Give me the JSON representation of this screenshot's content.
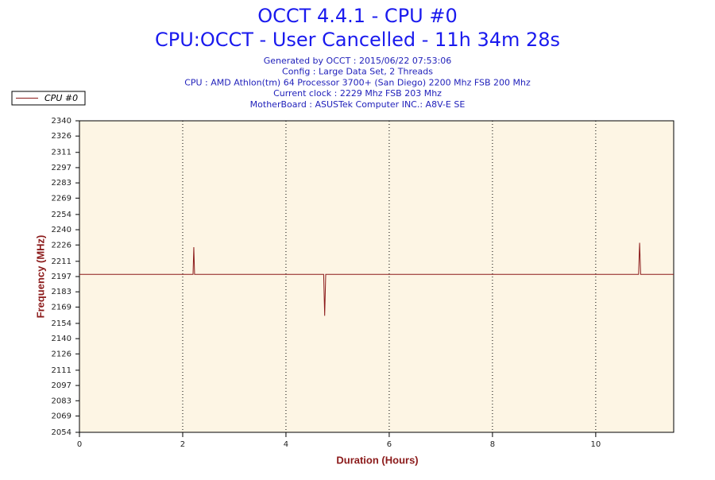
{
  "chart_data": {
    "type": "line",
    "title": "OCCT 4.4.1 - CPU #0",
    "subtitle": "CPU:OCCT - User Cancelled - 11h 34m 28s",
    "info": [
      "Generated by OCCT : 2015/06/22 07:53:06",
      "Config : Large Data Set, 2 Threads",
      "CPU : AMD Athlon(tm) 64 Processor 3700+ (San Diego) 2200 Mhz FSB 200 Mhz",
      "Current clock : 2229 Mhz FSB 203 Mhz",
      "MotherBoard : ASUSTek Computer INC.: A8V-E SE"
    ],
    "xlabel": "Duration (Hours)",
    "ylabel": "Frequency (MHz)",
    "xlim": [
      0,
      11.51
    ],
    "ylim": [
      2054,
      2340
    ],
    "xticks": [
      0,
      2,
      4,
      6,
      8,
      10
    ],
    "yticks": [
      2054,
      2069,
      2083,
      2097,
      2111,
      2126,
      2140,
      2154,
      2169,
      2183,
      2197,
      2211,
      2226,
      2240,
      2254,
      2269,
      2283,
      2297,
      2311,
      2326,
      2340
    ],
    "grid": true,
    "legend": "top-left",
    "series": [
      {
        "name": "CPU #0",
        "color": "#8b1a1a",
        "x": [
          0,
          2.2,
          2.215,
          2.23,
          4.73,
          4.75,
          4.77,
          10.83,
          10.85,
          10.87,
          11.51
        ],
        "values": [
          2199,
          2199,
          2224,
          2199,
          2199,
          2161,
          2199,
          2199,
          2228,
          2199,
          2199
        ]
      }
    ]
  }
}
